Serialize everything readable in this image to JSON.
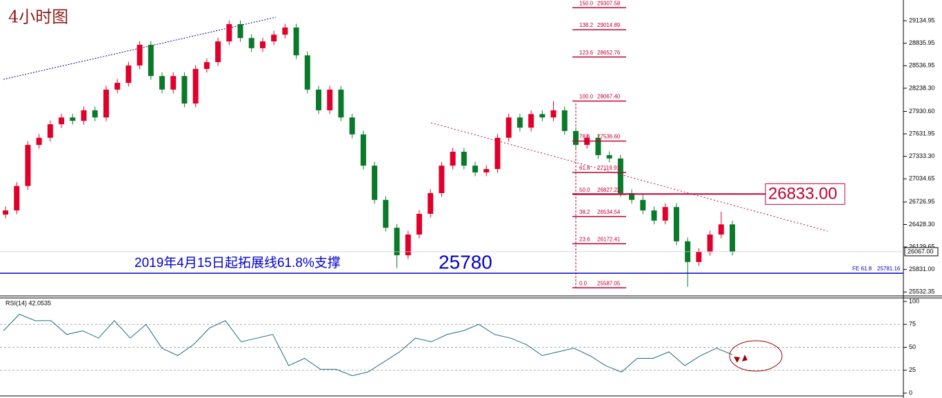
{
  "title": "4小时图",
  "annotation": "2019年4月15日起拓展线61.8%支撑",
  "support_label": "25780",
  "chart_data": [
    {
      "type": "candlestick",
      "up_color": "#e0002a",
      "down_color": "#0a7a2a",
      "candles": [
        [
          26560,
          26670,
          26510,
          26615
        ],
        [
          26615,
          26990,
          26565,
          26940
        ],
        [
          26940,
          27535,
          26890,
          27485
        ],
        [
          27485,
          27630,
          27435,
          27580
        ],
        [
          27580,
          27810,
          27530,
          27760
        ],
        [
          27760,
          27900,
          27710,
          27850
        ],
        [
          27850,
          27900,
          27755,
          27805
        ],
        [
          27805,
          27995,
          27755,
          27945
        ],
        [
          27945,
          27995,
          27800,
          27850
        ],
        [
          27850,
          28270,
          27800,
          28220
        ],
        [
          28220,
          28360,
          28170,
          28310
        ],
        [
          28310,
          28590,
          28260,
          28540
        ],
        [
          28540,
          28865,
          28490,
          28815
        ],
        [
          28815,
          28865,
          28350,
          28400
        ],
        [
          28400,
          28450,
          28170,
          28220
        ],
        [
          28220,
          28450,
          28170,
          28400
        ],
        [
          28400,
          28450,
          27985,
          28035
        ],
        [
          28035,
          28545,
          27985,
          28495
        ],
        [
          28495,
          28635,
          28445,
          28585
        ],
        [
          28585,
          28910,
          28535,
          28860
        ],
        [
          28860,
          29140,
          28810,
          29090
        ],
        [
          29090,
          29140,
          28855,
          28905
        ],
        [
          28905,
          28955,
          28720,
          28770
        ],
        [
          28770,
          28910,
          28720,
          28860
        ],
        [
          28860,
          29000,
          28810,
          28950
        ],
        [
          28950,
          29095,
          28900,
          29045
        ],
        [
          29045,
          29095,
          28625,
          28675
        ],
        [
          28675,
          28725,
          28170,
          28220
        ],
        [
          28220,
          28270,
          27895,
          27945
        ],
        [
          27945,
          28270,
          27895,
          28220
        ],
        [
          28220,
          28270,
          27800,
          27850
        ],
        [
          27850,
          27900,
          27575,
          27625
        ],
        [
          27625,
          27675,
          27160,
          27210
        ],
        [
          27210,
          27260,
          26705,
          26755
        ],
        [
          26755,
          26805,
          26335,
          26385
        ],
        [
          26385,
          26435,
          25850,
          26020
        ],
        [
          26020,
          26345,
          25970,
          26295
        ],
        [
          26295,
          26620,
          26245,
          26570
        ],
        [
          26570,
          26895,
          26520,
          26845
        ],
        [
          26845,
          27260,
          26795,
          27210
        ],
        [
          27210,
          27445,
          27160,
          27395
        ],
        [
          27395,
          27445,
          27160,
          27210
        ],
        [
          27210,
          27260,
          27070,
          27120
        ],
        [
          27120,
          27215,
          27070,
          27165
        ],
        [
          27165,
          27630,
          27115,
          27580
        ],
        [
          27580,
          27900,
          27530,
          27850
        ],
        [
          27850,
          27900,
          27665,
          27715
        ],
        [
          27715,
          27945,
          27665,
          27895
        ],
        [
          27895,
          27945,
          27800,
          27850
        ],
        [
          27850,
          28067,
          27800,
          27945
        ],
        [
          27945,
          27995,
          27620,
          27670
        ],
        [
          27670,
          27720,
          27435,
          27485
        ],
        [
          27485,
          27630,
          27435,
          27580
        ],
        [
          27580,
          27630,
          27300,
          27350
        ],
        [
          27350,
          27400,
          27255,
          27305
        ],
        [
          27305,
          27355,
          26795,
          26845
        ],
        [
          26845,
          26895,
          26705,
          26755
        ],
        [
          26755,
          26833,
          26565,
          26615
        ],
        [
          26615,
          26665,
          26430,
          26480
        ],
        [
          26480,
          26710,
          26430,
          26660
        ],
        [
          26660,
          26710,
          26155,
          26205
        ],
        [
          26205,
          26255,
          25600,
          25930
        ],
        [
          25930,
          26115,
          25880,
          26065
        ],
        [
          26065,
          26345,
          26015,
          26295
        ],
        [
          26295,
          26600,
          26245,
          26430
        ],
        [
          26430,
          26480,
          26017,
          26067
        ]
      ],
      "ylim": [
        25489,
        29410
      ],
      "yticks": [
        {
          "value": 29134.95,
          "label": "29134.95"
        },
        {
          "value": 28835.95,
          "label": "28835.95"
        },
        {
          "value": 28536.95,
          "label": "28536.95"
        },
        {
          "value": 28238.3,
          "label": "28238.30"
        },
        {
          "value": 27930.6,
          "label": "27930.60"
        },
        {
          "value": 27631.95,
          "label": "27631.95"
        },
        {
          "value": 27333.3,
          "label": "27333.30"
        },
        {
          "value": 27034.65,
          "label": "27034.65"
        },
        {
          "value": 26726.95,
          "label": "26726.95"
        },
        {
          "value": 26428.3,
          "label": "26428.30"
        },
        {
          "value": 26129.65,
          "label": "26129.65"
        },
        {
          "value": 25831,
          "label": "25831.00"
        },
        {
          "value": 25532.35,
          "label": "25532.35"
        }
      ],
      "fib_levels": [
        {
          "ratio": "150.0",
          "price": {
            "value": 29307.58,
            "label": "29307.58"
          }
        },
        {
          "ratio": "138.2",
          "price": {
            "value": 29014.89,
            "label": "29014.89"
          }
        },
        {
          "ratio": "123.6",
          "price": {
            "value": 28652.76,
            "label": "28652.76"
          }
        },
        {
          "ratio": "100.0",
          "price": {
            "value": 28067.4,
            "label": "28067.40"
          }
        },
        {
          "ratio": "78.6",
          "price": {
            "value": 27536.6,
            "label": "27536.60"
          }
        },
        {
          "ratio": "61.8",
          "price": {
            "value": 27119.91,
            "label": "27119.91"
          }
        },
        {
          "ratio": "50.0",
          "price": {
            "value": 26827.22,
            "label": "26827.22"
          }
        },
        {
          "ratio": "38.2",
          "price": {
            "value": 26534.54,
            "label": "26534.54"
          }
        },
        {
          "ratio": "23.6",
          "price": {
            "value": 26172.41,
            "label": "26172.41"
          }
        },
        {
          "ratio": "0.0",
          "price": {
            "value": 25587.05,
            "label": "25587.05"
          }
        }
      ],
      "fib_color": "#c00030",
      "resistance": {
        "value": 26833,
        "label": "26833.00",
        "color": "#c00030"
      },
      "last_price": {
        "value": 26067,
        "label": "26067.00"
      },
      "fe_line": {
        "name": "FE 61.8",
        "value": 25781.16,
        "color": "#0000cc"
      }
    },
    {
      "type": "line",
      "title": "RSI(14) 42.0535",
      "color": "#1a6f7a",
      "values": [
        68,
        86,
        79,
        79,
        64,
        68,
        60,
        79,
        60,
        75,
        49,
        41,
        53,
        71,
        79,
        56,
        60,
        64,
        30,
        38,
        26,
        26,
        19,
        23,
        34,
        45,
        60,
        56,
        64,
        68,
        75,
        64,
        60,
        53,
        41,
        45,
        49,
        41,
        30,
        23,
        38,
        38,
        45,
        30,
        41,
        49,
        42
      ],
      "ylim": [
        0,
        100
      ],
      "yticks": [
        100,
        75,
        50,
        25,
        0
      ],
      "grid": [
        75,
        50,
        25
      ]
    }
  ]
}
